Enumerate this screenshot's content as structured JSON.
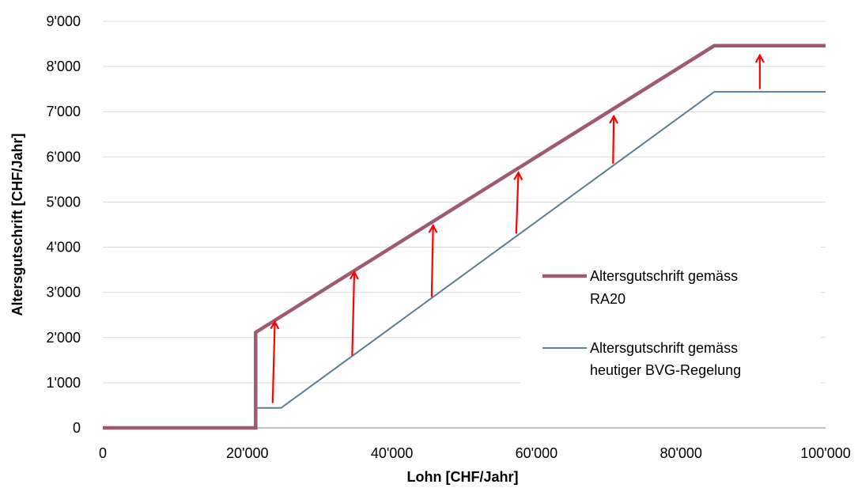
{
  "chart_data": {
    "type": "line",
    "title": "",
    "xlabel": "Lohn [CHF/Jahr]",
    "ylabel": "Altersgutschrift [CHF/Jahr]",
    "xlim": [
      0,
      100000
    ],
    "ylim": [
      0,
      9000
    ],
    "x_ticks": [
      0,
      20000,
      40000,
      60000,
      80000,
      100000
    ],
    "x_tick_labels": [
      "0",
      "20'000",
      "40'000",
      "60'000",
      "80'000",
      "100'000"
    ],
    "y_ticks": [
      0,
      1000,
      2000,
      3000,
      4000,
      5000,
      6000,
      7000,
      8000,
      9000
    ],
    "y_tick_labels": [
      "0",
      "1'000",
      "2'000",
      "3'000",
      "4'000",
      "5'000",
      "6'000",
      "7'000",
      "8'000",
      "9'000"
    ],
    "grid": "horizontal",
    "legend_position": "right",
    "series": [
      {
        "name": "Altersgutschrift gemäss RA20",
        "legend_lines": [
          "Altersgutschrift gemäss",
          "RA20"
        ],
        "color": "#A05A70",
        "x": [
          0,
          21150,
          21150,
          84600,
          100000
        ],
        "y": [
          0,
          0,
          2115,
          8460,
          8460
        ]
      },
      {
        "name": "Altersgutschrift gemäss heutiger BVG-Regelung",
        "legend_lines": [
          "Altersgutschrift gemäss",
          "heutiger BVG-Regelung"
        ],
        "color": "#5B7F90",
        "x": [
          0,
          21150,
          21150,
          24675,
          84600,
          100000
        ],
        "y": [
          0,
          0,
          443,
          443,
          7440,
          7440
        ]
      }
    ],
    "annotations": {
      "type": "arrows",
      "color": "#FF0000",
      "items": [
        {
          "x1": 23500,
          "y1": 550,
          "x2": 23800,
          "y2": 2350
        },
        {
          "x1": 34500,
          "y1": 1600,
          "x2": 34800,
          "y2": 3450
        },
        {
          "x1": 45500,
          "y1": 2900,
          "x2": 45700,
          "y2": 4480
        },
        {
          "x1": 57200,
          "y1": 4300,
          "x2": 57500,
          "y2": 5650
        },
        {
          "x1": 70600,
          "y1": 5850,
          "x2": 70700,
          "y2": 6900
        },
        {
          "x1": 90900,
          "y1": 7500,
          "x2": 90900,
          "y2": 8250
        }
      ]
    }
  }
}
